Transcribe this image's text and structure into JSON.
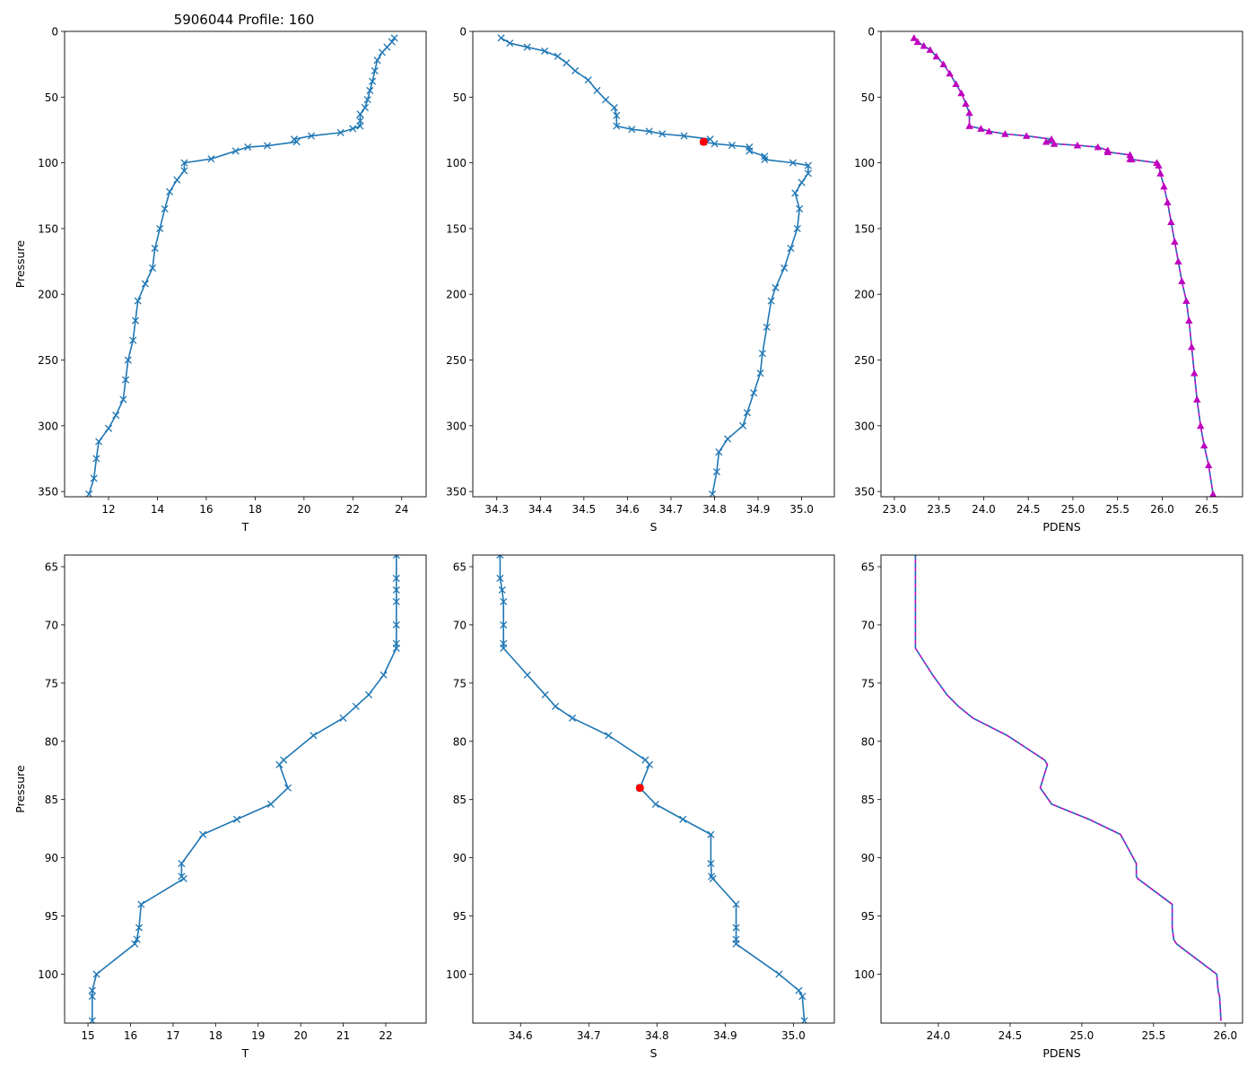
{
  "figure": {
    "title": "5906044 Profile: 160"
  },
  "colors": {
    "line": "#1f77b4",
    "pdens": "#bf00bf",
    "mld": "#ff0000"
  },
  "chart_data": [
    {
      "id": "top-T",
      "type": "line",
      "marker": "x",
      "series_name": "T",
      "xlabel": "T",
      "ylabel": "Pressure",
      "xlim": [
        10.2,
        25.0
      ],
      "ylim": [
        354,
        0
      ],
      "xticks": [
        12,
        14,
        16,
        18,
        20,
        22,
        24
      ],
      "yticks": [
        0,
        50,
        100,
        150,
        200,
        250,
        300,
        350
      ],
      "points": [
        [
          23.7,
          5
        ],
        [
          23.6,
          8
        ],
        [
          23.4,
          12
        ],
        [
          23.2,
          16
        ],
        [
          23.0,
          22
        ],
        [
          22.9,
          30
        ],
        [
          22.8,
          38
        ],
        [
          22.7,
          45
        ],
        [
          22.6,
          52
        ],
        [
          22.5,
          58
        ],
        [
          22.3,
          63
        ],
        [
          22.3,
          68
        ],
        [
          22.3,
          72
        ],
        [
          22.0,
          74
        ],
        [
          21.5,
          77
        ],
        [
          20.3,
          79.5
        ],
        [
          19.6,
          82
        ],
        [
          19.7,
          84
        ],
        [
          18.5,
          87
        ],
        [
          17.7,
          88
        ],
        [
          17.2,
          91
        ],
        [
          16.2,
          97
        ],
        [
          15.1,
          100
        ],
        [
          15.1,
          106
        ],
        [
          14.8,
          113
        ],
        [
          14.5,
          122
        ],
        [
          14.3,
          135
        ],
        [
          14.1,
          150
        ],
        [
          13.9,
          165
        ],
        [
          13.8,
          180
        ],
        [
          13.5,
          192
        ],
        [
          13.2,
          205
        ],
        [
          13.1,
          220
        ],
        [
          13.0,
          235
        ],
        [
          12.8,
          250
        ],
        [
          12.7,
          265
        ],
        [
          12.6,
          280
        ],
        [
          12.3,
          292
        ],
        [
          12.0,
          302
        ],
        [
          11.6,
          312
        ],
        [
          11.5,
          325
        ],
        [
          11.4,
          340
        ],
        [
          11.2,
          352
        ]
      ]
    },
    {
      "id": "top-S",
      "type": "line",
      "marker": "x",
      "series_name": "S",
      "xlabel": "S",
      "ylabel": "",
      "xlim": [
        34.245,
        35.075
      ],
      "ylim": [
        354,
        0
      ],
      "xticks": [
        34.3,
        34.4,
        34.5,
        34.6,
        34.7,
        34.8,
        34.9,
        35.0
      ],
      "yticks": [
        0,
        50,
        100,
        150,
        200,
        250,
        300,
        350
      ],
      "points": [
        [
          34.31,
          5
        ],
        [
          34.33,
          9
        ],
        [
          34.37,
          12
        ],
        [
          34.41,
          15
        ],
        [
          34.44,
          19
        ],
        [
          34.46,
          24
        ],
        [
          34.48,
          30
        ],
        [
          34.51,
          37
        ],
        [
          34.53,
          45
        ],
        [
          34.55,
          52
        ],
        [
          34.57,
          58
        ],
        [
          34.575,
          64
        ],
        [
          34.575,
          72
        ],
        [
          34.61,
          74.5
        ],
        [
          34.65,
          76
        ],
        [
          34.68,
          78
        ],
        [
          34.73,
          79.5
        ],
        [
          34.79,
          82
        ],
        [
          34.775,
          84
        ],
        [
          34.8,
          85.5
        ],
        [
          34.84,
          86.7
        ],
        [
          34.88,
          88
        ],
        [
          34.88,
          91
        ],
        [
          34.915,
          95
        ],
        [
          34.915,
          97.5
        ],
        [
          34.98,
          100
        ],
        [
          35.015,
          102
        ],
        [
          35.015,
          108
        ],
        [
          35.0,
          115
        ],
        [
          34.985,
          123
        ],
        [
          34.995,
          135
        ],
        [
          34.99,
          150
        ],
        [
          34.975,
          165
        ],
        [
          34.96,
          180
        ],
        [
          34.94,
          195
        ],
        [
          34.93,
          205
        ],
        [
          34.92,
          225
        ],
        [
          34.91,
          245
        ],
        [
          34.905,
          260
        ],
        [
          34.89,
          275
        ],
        [
          34.875,
          290
        ],
        [
          34.865,
          300
        ],
        [
          34.83,
          310
        ],
        [
          34.81,
          320
        ],
        [
          34.805,
          335
        ],
        [
          34.795,
          352
        ]
      ],
      "mld_point": [
        34.775,
        84
      ]
    },
    {
      "id": "top-PDENS",
      "type": "line",
      "marker": "triangle",
      "series_name": "PDENS",
      "xlabel": "PDENS",
      "ylabel": "",
      "xlim": [
        22.85,
        26.9
      ],
      "ylim": [
        354,
        0
      ],
      "xticks": [
        23.0,
        23.5,
        24.0,
        24.5,
        25.0,
        25.5,
        26.0,
        26.5
      ],
      "yticks": [
        0,
        50,
        100,
        150,
        200,
        250,
        300,
        350
      ],
      "points": [
        [
          23.22,
          5
        ],
        [
          23.26,
          8
        ],
        [
          23.33,
          11
        ],
        [
          23.4,
          14
        ],
        [
          23.47,
          19
        ],
        [
          23.55,
          25
        ],
        [
          23.62,
          32
        ],
        [
          23.69,
          40
        ],
        [
          23.75,
          47
        ],
        [
          23.8,
          55
        ],
        [
          23.84,
          62
        ],
        [
          23.84,
          72
        ],
        [
          23.97,
          74
        ],
        [
          24.06,
          76
        ],
        [
          24.24,
          78
        ],
        [
          24.48,
          79.5
        ],
        [
          24.76,
          82
        ],
        [
          24.7,
          84
        ],
        [
          24.79,
          85.5
        ],
        [
          25.05,
          86.7
        ],
        [
          25.28,
          88
        ],
        [
          25.39,
          90.5
        ],
        [
          25.39,
          91.8
        ],
        [
          25.64,
          94
        ],
        [
          25.64,
          97
        ],
        [
          25.66,
          97.4
        ],
        [
          25.94,
          100
        ],
        [
          25.96,
          102
        ],
        [
          25.98,
          108
        ],
        [
          26.02,
          118
        ],
        [
          26.06,
          130
        ],
        [
          26.1,
          145
        ],
        [
          26.14,
          160
        ],
        [
          26.18,
          175
        ],
        [
          26.22,
          190
        ],
        [
          26.27,
          205
        ],
        [
          26.3,
          220
        ],
        [
          26.33,
          240
        ],
        [
          26.36,
          260
        ],
        [
          26.39,
          280
        ],
        [
          26.43,
          300
        ],
        [
          26.47,
          315
        ],
        [
          26.52,
          330
        ],
        [
          26.57,
          352
        ]
      ]
    },
    {
      "id": "bottom-T",
      "type": "line",
      "marker": "x",
      "series_name": "T",
      "xlabel": "T",
      "ylabel": "Pressure",
      "xlim": [
        14.45,
        22.95
      ],
      "ylim": [
        104.2,
        64.0
      ],
      "xticks": [
        15,
        16,
        17,
        18,
        19,
        20,
        21,
        22
      ],
      "yticks": [
        65,
        70,
        75,
        80,
        85,
        90,
        95,
        100
      ],
      "points": [
        [
          22.25,
          64
        ],
        [
          22.25,
          66
        ],
        [
          22.25,
          67
        ],
        [
          22.25,
          68
        ],
        [
          22.25,
          70
        ],
        [
          22.25,
          71.6
        ],
        [
          22.25,
          72
        ],
        [
          21.95,
          74.3
        ],
        [
          21.6,
          76
        ],
        [
          21.3,
          77
        ],
        [
          21.0,
          78
        ],
        [
          20.3,
          79.5
        ],
        [
          19.6,
          81.6
        ],
        [
          19.5,
          82
        ],
        [
          19.7,
          84
        ],
        [
          19.3,
          85.4
        ],
        [
          18.5,
          86.7
        ],
        [
          17.7,
          88
        ],
        [
          17.2,
          90.5
        ],
        [
          17.2,
          91.6
        ],
        [
          17.25,
          91.8
        ],
        [
          16.25,
          94
        ],
        [
          16.2,
          96
        ],
        [
          16.15,
          97
        ],
        [
          16.1,
          97.4
        ],
        [
          15.2,
          100
        ],
        [
          15.1,
          101.4
        ],
        [
          15.1,
          101.9
        ],
        [
          15.1,
          104
        ]
      ]
    },
    {
      "id": "bottom-S",
      "type": "line",
      "marker": "x",
      "series_name": "S",
      "xlabel": "S",
      "ylabel": "",
      "xlim": [
        34.53,
        35.06
      ],
      "ylim": [
        104.2,
        64.0
      ],
      "xticks": [
        34.6,
        34.7,
        34.8,
        34.9,
        35.0
      ],
      "yticks": [
        65,
        70,
        75,
        80,
        85,
        90,
        95,
        100
      ],
      "points": [
        [
          34.57,
          64
        ],
        [
          34.57,
          66
        ],
        [
          34.573,
          67
        ],
        [
          34.575,
          68
        ],
        [
          34.575,
          70
        ],
        [
          34.575,
          71.6
        ],
        [
          34.575,
          72
        ],
        [
          34.61,
          74.3
        ],
        [
          34.636,
          76
        ],
        [
          34.651,
          77
        ],
        [
          34.676,
          78
        ],
        [
          34.729,
          79.5
        ],
        [
          34.783,
          81.6
        ],
        [
          34.789,
          82
        ],
        [
          34.775,
          84
        ],
        [
          34.798,
          85.4
        ],
        [
          34.838,
          86.7
        ],
        [
          34.879,
          88
        ],
        [
          34.879,
          90.5
        ],
        [
          34.88,
          91.6
        ],
        [
          34.882,
          91.8
        ],
        [
          34.916,
          94
        ],
        [
          34.916,
          96
        ],
        [
          34.916,
          97
        ],
        [
          34.916,
          97.4
        ],
        [
          34.979,
          100
        ],
        [
          35.008,
          101.4
        ],
        [
          35.013,
          101.9
        ],
        [
          35.016,
          104
        ]
      ],
      "mld_point": [
        34.775,
        84
      ]
    },
    {
      "id": "bottom-PDENS",
      "type": "line",
      "marker": "none",
      "series_name": "PDENS",
      "xlabel": "PDENS",
      "ylabel": "",
      "xlim": [
        23.6,
        26.12
      ],
      "ylim": [
        104.2,
        64.0
      ],
      "xticks": [
        24.0,
        24.5,
        25.0,
        25.5,
        26.0
      ],
      "yticks": [
        65,
        70,
        75,
        80,
        85,
        90,
        95,
        100
      ],
      "points": [
        [
          23.84,
          64
        ],
        [
          23.84,
          72
        ],
        [
          23.96,
          74.3
        ],
        [
          24.06,
          76
        ],
        [
          24.14,
          77
        ],
        [
          24.24,
          78
        ],
        [
          24.48,
          79.5
        ],
        [
          24.74,
          81.6
        ],
        [
          24.76,
          82
        ],
        [
          24.71,
          84
        ],
        [
          24.79,
          85.4
        ],
        [
          25.05,
          86.7
        ],
        [
          25.27,
          88
        ],
        [
          25.38,
          90.5
        ],
        [
          25.38,
          91.6
        ],
        [
          25.39,
          91.8
        ],
        [
          25.63,
          94
        ],
        [
          25.63,
          96
        ],
        [
          25.64,
          97
        ],
        [
          25.66,
          97.4
        ],
        [
          25.94,
          100
        ],
        [
          25.95,
          101.4
        ],
        [
          25.96,
          101.9
        ],
        [
          25.97,
          104
        ]
      ]
    }
  ]
}
